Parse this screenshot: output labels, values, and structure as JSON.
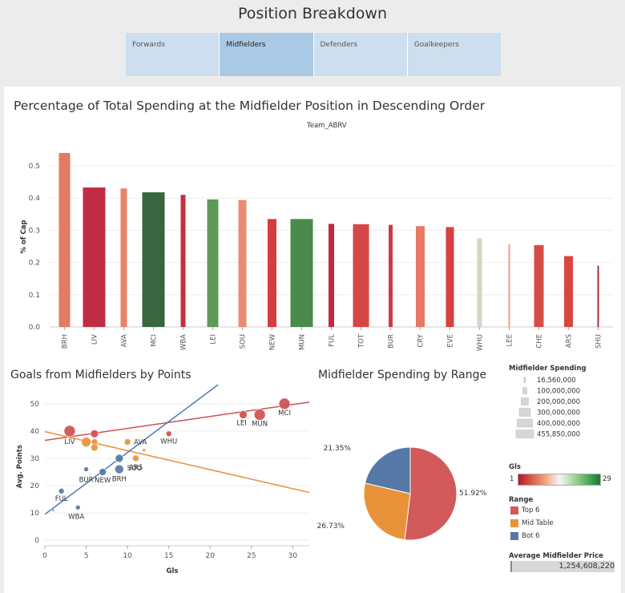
{
  "page": {
    "title": "Position Breakdown"
  },
  "tabs": [
    {
      "label": "Forwards",
      "active": false
    },
    {
      "label": "Midfielders",
      "active": true
    },
    {
      "label": "Defenders",
      "active": false
    },
    {
      "label": "Goalkeepers",
      "active": false
    }
  ],
  "bar_chart": {
    "title": "Percentage of Total Spending at the Midfielder Position in Descending Order",
    "header": "Team_ABRV",
    "ylabel": "% of Cap"
  },
  "scatter_chart": {
    "title": "Goals from Midfielders by Points",
    "xlabel": "Gls",
    "ylabel": "Avg. Points"
  },
  "pie_chart": {
    "title": "Midfielder Spending by Range"
  },
  "legends": {
    "size_title": "Midfielder Spending",
    "size_labels": [
      "16,560,000",
      "100,000,000",
      "200,000,000",
      "300,000,000",
      "400,000,000",
      "455,850,000"
    ],
    "gls_title": "Gls",
    "gls_min": "1",
    "gls_max": "29",
    "range_title": "Range",
    "range_items": [
      {
        "label": "Top 6",
        "color": "#d25a5a"
      },
      {
        "label": "Mid Table",
        "color": "#e8923a"
      },
      {
        "label": "Bot 6",
        "color": "#5479a6"
      }
    ],
    "avg_title": "Average Midfielder Price",
    "avg_value": "1,254,608,220"
  },
  "chart_data": [
    {
      "type": "bar",
      "title": "Percentage of Total Spending at the Midfielder Position in Descending Order",
      "xlabel": "Team_ABRV",
      "ylabel": "% of Cap",
      "ylim": [
        0,
        0.55
      ],
      "yticks": [
        "0.0",
        "0.1",
        "0.2",
        "0.3",
        "0.4",
        "0.5"
      ],
      "categories": [
        "BRH",
        "LIV",
        "AVA",
        "MCI",
        "WBA",
        "LEI",
        "SOU",
        "NEW",
        "MUN",
        "FUL",
        "TOT",
        "BUR",
        "CRY",
        "EVE",
        "WHU",
        "LEE",
        "CHE",
        "ARS",
        "SHU"
      ],
      "values": [
        0.54,
        0.433,
        0.43,
        0.418,
        0.41,
        0.396,
        0.394,
        0.335,
        0.335,
        0.32,
        0.319,
        0.317,
        0.313,
        0.31,
        0.275,
        0.256,
        0.254,
        0.22,
        0.19
      ],
      "colors": [
        "#e47a62",
        "#bf2d42",
        "#e8826a",
        "#37663f",
        "#c2303e",
        "#5e9a57",
        "#ea8c73",
        "#d33d41",
        "#4a8a4b",
        "#c4283e",
        "#d54747",
        "#cc3a44",
        "#e87866",
        "#d7413f",
        "#d1d7c4",
        "#f09b85",
        "#d84b47",
        "#d9463f",
        "#b22a40"
      ],
      "bar_widths": [
        14,
        28,
        8,
        28,
        6,
        14,
        10,
        11,
        28,
        7,
        20,
        5,
        11,
        10,
        6,
        2,
        12,
        11,
        2
      ],
      "grid": true
    },
    {
      "type": "scatter",
      "title": "Goals from Midfielders by Points",
      "xlabel": "Gls",
      "ylabel": "Avg. Points",
      "xlim": [
        0,
        32
      ],
      "ylim": [
        -2,
        57
      ],
      "xticks": [
        0,
        5,
        10,
        15,
        20,
        25,
        30
      ],
      "yticks": [
        0,
        10,
        20,
        30,
        40,
        50
      ],
      "points": [
        {
          "label": "MCI",
          "x": 29,
          "y": 50,
          "r": 7,
          "color": "#cf5050"
        },
        {
          "label": "LEI",
          "x": 24,
          "y": 46,
          "r": 5,
          "color": "#cf5050"
        },
        {
          "label": "MUN",
          "x": 26,
          "y": 46,
          "r": 7,
          "color": "#cf5050"
        },
        {
          "label": "LIV",
          "x": 3,
          "y": 40,
          "r": 7,
          "color": "#cf5050"
        },
        {
          "label": "",
          "x": 6,
          "y": 39,
          "r": 5,
          "color": "#cf5050"
        },
        {
          "label": "WHU",
          "x": 15,
          "y": 39,
          "r": 3.5,
          "color": "#cf5050"
        },
        {
          "label": "",
          "x": 5,
          "y": 36,
          "r": 6,
          "color": "#e8923a"
        },
        {
          "label": "",
          "x": 6,
          "y": 36,
          "r": 4,
          "color": "#e8923a"
        },
        {
          "label": "AVA",
          "x": 10,
          "y": 36,
          "r": 4,
          "color": "#e8923a"
        },
        {
          "label": "",
          "x": 6,
          "y": 34,
          "r": 4.5,
          "color": "#e8923a"
        },
        {
          "label": "",
          "x": 12,
          "y": 33,
          "r": 2,
          "color": "#e8923a"
        },
        {
          "label": "ARS",
          "x": 11,
          "y": 30,
          "r": 4,
          "color": "#e8923a"
        },
        {
          "label": "SOU",
          "x": 9,
          "y": 30,
          "r": 5,
          "color": "#5479a6"
        },
        {
          "label": "BUR",
          "x": 5,
          "y": 26,
          "r": 3,
          "color": "#5479a6"
        },
        {
          "label": "NEW",
          "x": 7,
          "y": 25,
          "r": 4.5,
          "color": "#5479a6"
        },
        {
          "label": "BRH",
          "x": 9,
          "y": 26,
          "r": 5.5,
          "color": "#5479a6"
        },
        {
          "label": "FUL",
          "x": 2,
          "y": 18,
          "r": 3.5,
          "color": "#5479a6"
        },
        {
          "label": "WBA",
          "x": 4,
          "y": 12,
          "r": 3,
          "color": "#5479a6"
        },
        {
          "label": "",
          "x": 1,
          "y": 11,
          "r": 1.5,
          "color": "#5479a6"
        }
      ],
      "trendlines": [
        {
          "color": "#cf5050",
          "x": [
            0,
            32
          ],
          "y": [
            36.6,
            50.6
          ]
        },
        {
          "color": "#e8923a",
          "x": [
            0,
            32
          ],
          "y": [
            39.8,
            17.5
          ]
        },
        {
          "color": "#4f79b0",
          "x": [
            0,
            32
          ],
          "y": [
            9.5,
            82
          ]
        }
      ]
    },
    {
      "type": "pie",
      "title": "Midfielder Spending by Range",
      "slices": [
        {
          "label": "Top 6",
          "value": 51.92,
          "text": "51.92%",
          "color": "#d25a5a"
        },
        {
          "label": "Mid Table",
          "value": 26.73,
          "text": "26.73%",
          "color": "#e8923a"
        },
        {
          "label": "Bot 6",
          "value": 21.35,
          "text": "21.35%",
          "color": "#5479a6"
        }
      ]
    }
  ]
}
